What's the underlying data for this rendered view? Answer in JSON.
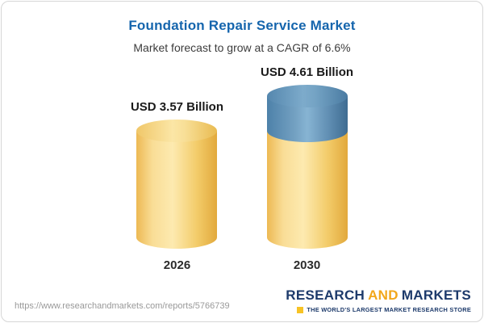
{
  "chart_data": {
    "type": "bar",
    "title": "Foundation Repair Service Market",
    "subtitle": "Market forecast to grow at a CAGR of 6.6%",
    "cagr_percent": 6.6,
    "categories": [
      "2026",
      "2030"
    ],
    "values": [
      3.57,
      4.61
    ],
    "unit": "USD Billion",
    "data_labels": [
      "USD 3.57 Billion",
      "USD 4.61 Billion"
    ],
    "legend_position": "none",
    "axes_visible": false,
    "colors": {
      "base_segment": "#f6cd6a",
      "growth_segment": "#5b8fb5",
      "title_text": "#1565ad"
    }
  },
  "footer": {
    "url": "https://www.researchandmarkets.com/reports/5766739",
    "logo": {
      "word1": "RESEARCH",
      "word2": "AND",
      "word3": "MARKETS",
      "tagline": "THE WORLD'S LARGEST MARKET RESEARCH STORE"
    }
  }
}
